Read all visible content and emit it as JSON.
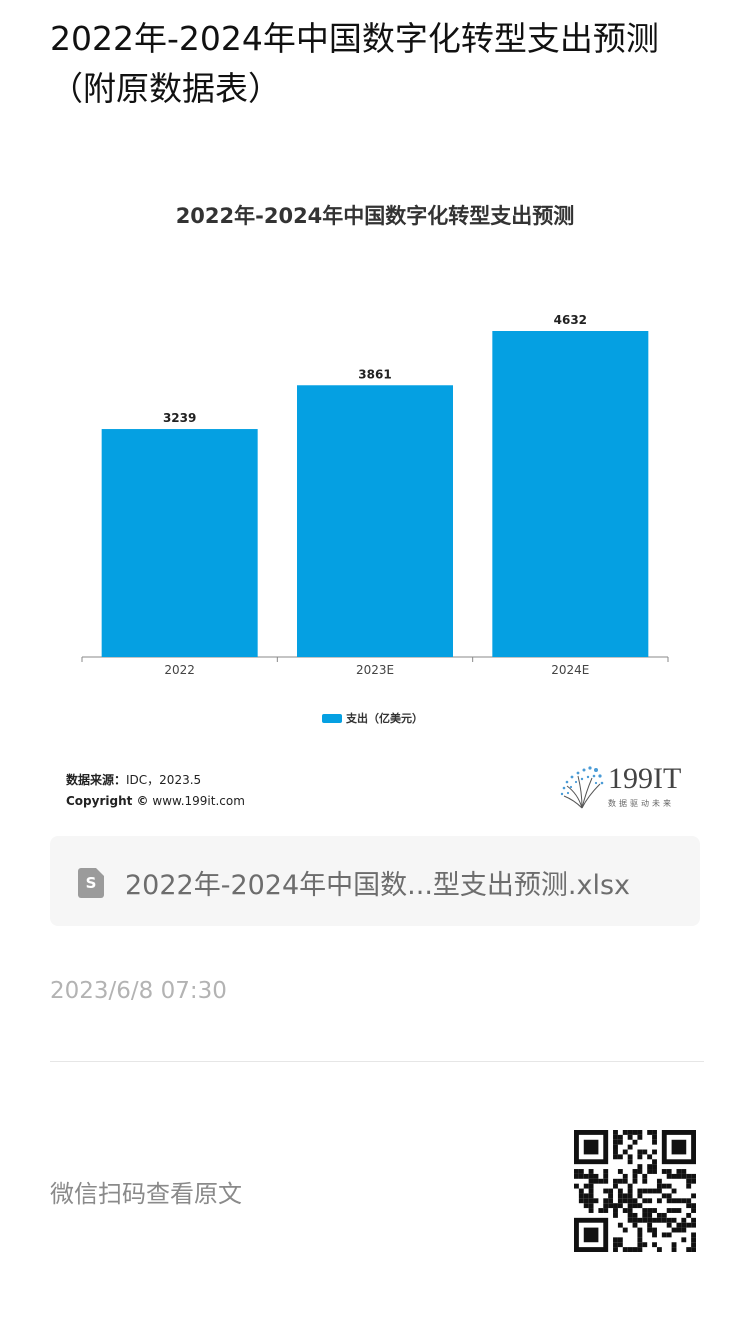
{
  "page": {
    "title": "2022年-2024年中国数字化转型支出预测（附原数据表）"
  },
  "chart_data": {
    "type": "bar",
    "title": "2022年-2024年中国数字化转型支出预测",
    "categories": [
      "2022",
      "2023E",
      "2024E"
    ],
    "series": [
      {
        "name": "支出（亿美元）",
        "values": [
          3239,
          3861,
          4632
        ],
        "color": "#05a0e2"
      }
    ],
    "data_labels": [
      "3239",
      "3861",
      "4632"
    ],
    "ylim": [
      0,
      5000
    ],
    "grid": false,
    "legend": "bottom"
  },
  "source": {
    "label": "数据来源：",
    "value": "IDC，2023.5",
    "copyright_label": "Copyright ©",
    "copyright_value": "www.199it.com"
  },
  "logo": {
    "text": "199IT",
    "tagline": "数据驱动未来"
  },
  "file": {
    "icon": "spreadsheet-file-icon",
    "icon_glyph": "S",
    "name": "2022年-2024年中国数...型支出预测.xlsx"
  },
  "timestamp": "2023/6/8 07:30",
  "footer": {
    "scan_text": "微信扫码查看原文",
    "qr_icon": "qr-code-icon"
  }
}
